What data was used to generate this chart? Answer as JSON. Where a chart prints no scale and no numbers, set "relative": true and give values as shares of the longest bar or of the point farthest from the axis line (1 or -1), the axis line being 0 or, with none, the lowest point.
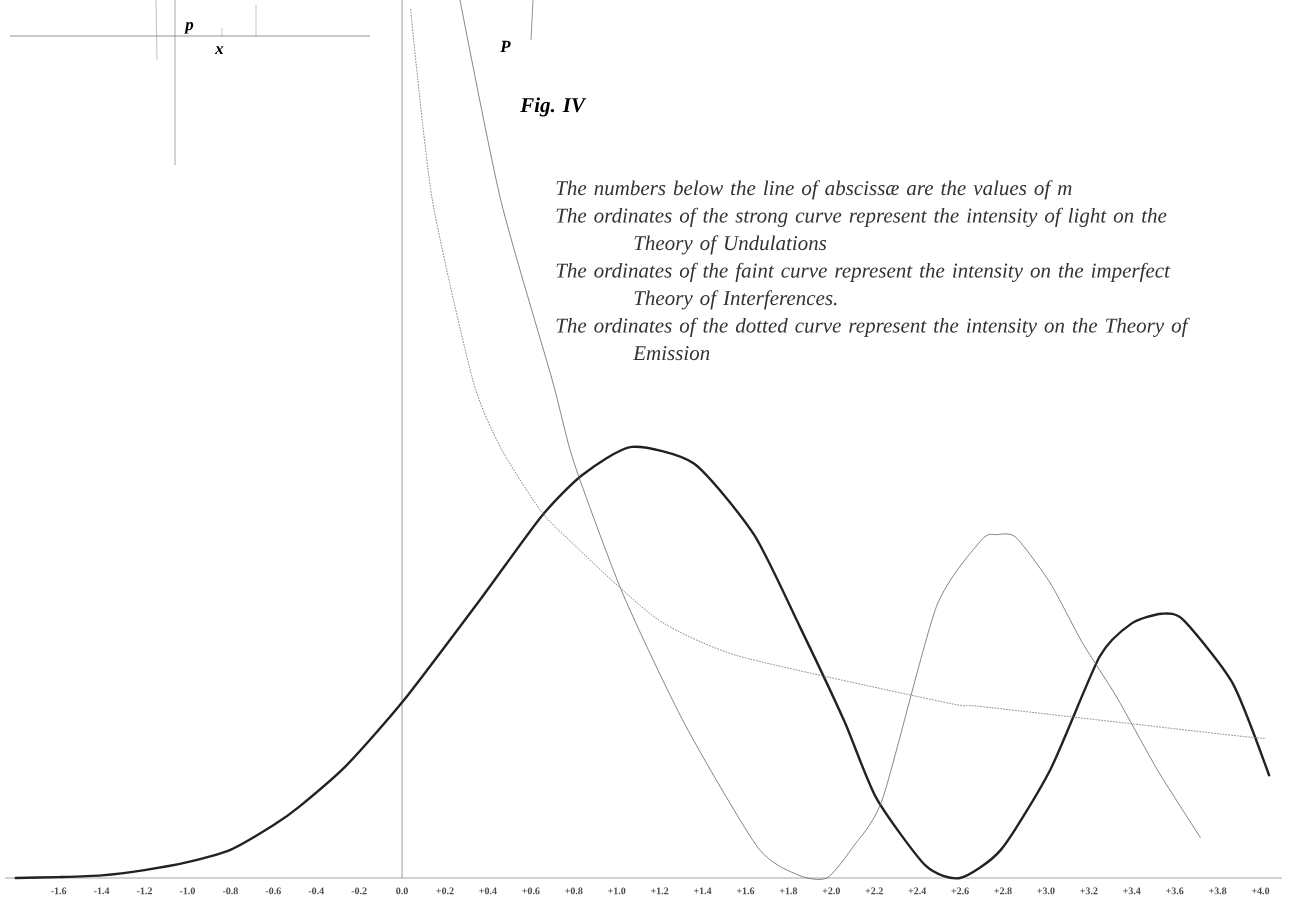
{
  "chart_data": {
    "type": "line",
    "title": "Fig. IV",
    "annotations": [
      "The numbers below the line of abscissæ are the values of m",
      "The ordinates of the strong curve represent the intensity of light on the Theory of Undulations",
      "The ordinates of the faint curve represent the intensity on the imperfect Theory of Interferences.",
      "The ordinates of the dotted curve represent the intensity on the Theory of Emission",
      "p",
      "x",
      "P"
    ],
    "relative": true,
    "xlim": [
      -1.85,
      4.1
    ],
    "xticks": [
      {
        "value": -1.6,
        "label": "-1.6"
      },
      {
        "value": -1.4,
        "label": "-1.4"
      },
      {
        "value": -1.2,
        "label": "-1.2"
      },
      {
        "value": -1.0,
        "label": "-1.0"
      },
      {
        "value": -0.8,
        "label": "-0.8"
      },
      {
        "value": -0.6,
        "label": "-0.6"
      },
      {
        "value": -0.4,
        "label": "-0.4"
      },
      {
        "value": -0.2,
        "label": "-0.2"
      },
      {
        "value": 0,
        "label": "0.0"
      },
      {
        "value": 0.2,
        "label": "+0.2"
      },
      {
        "value": 0.4,
        "label": "+0.4"
      },
      {
        "value": 0.6,
        "label": "+0.6"
      },
      {
        "value": 0.8,
        "label": "+0.8"
      },
      {
        "value": 1.0,
        "label": "+1.0"
      },
      {
        "value": 1.2,
        "label": "+1.2"
      },
      {
        "value": 1.4,
        "label": "+1.4"
      },
      {
        "value": 1.6,
        "label": "+1.6"
      },
      {
        "value": 1.8,
        "label": "+1.8"
      },
      {
        "value": 2.0,
        "label": "+2.0"
      },
      {
        "value": 2.2,
        "label": "+2.2"
      },
      {
        "value": 2.4,
        "label": "+2.4"
      },
      {
        "value": 2.6,
        "label": "+2.6"
      },
      {
        "value": 2.8,
        "label": "+2.8"
      },
      {
        "value": 3.0,
        "label": "+3.0"
      },
      {
        "value": 3.2,
        "label": "+3.2"
      },
      {
        "value": 3.4,
        "label": "+3.4"
      },
      {
        "value": 3.6,
        "label": "+3.6"
      },
      {
        "value": 3.8,
        "label": "+3.8"
      },
      {
        "value": 4.0,
        "label": "+4.0"
      }
    ],
    "tick_labels": "x",
    "ref_lines": [
      {
        "axis": "x",
        "value": 0,
        "color": "#555555"
      }
    ],
    "series": [
      {
        "color": "#222222",
        "line_style": "solid",
        "x": [
          -1.8,
          -1.6,
          -1.4,
          -1.2,
          -1.0,
          -0.8,
          -0.6,
          -0.48,
          -0.26,
          0.01,
          0.37,
          0.65,
          0.84,
          1.07,
          1.36,
          1.64,
          1.85,
          2.06,
          2.21,
          2.44,
          2.6,
          2.79,
          3.02,
          3.25,
          3.4,
          3.54,
          3.64,
          3.87,
          4.04
        ],
        "values": [
          0.0,
          0.001,
          0.003,
          0.009,
          0.018,
          0.032,
          0.06,
          0.081,
          0.128,
          0.203,
          0.319,
          0.412,
          0.459,
          0.491,
          0.472,
          0.391,
          0.288,
          0.179,
          0.091,
          0.014,
          0.0,
          0.032,
          0.123,
          0.252,
          0.29,
          0.301,
          0.294,
          0.222,
          0.117
        ]
      },
      {
        "color": "#666666",
        "line_style": "solid",
        "x": [
          0.27,
          0.46,
          0.7,
          0.8,
          1.03,
          1.32,
          1.66,
          1.85,
          1.98,
          2.1,
          2.24,
          2.49,
          2.7,
          2.77,
          2.86,
          3.02,
          3.17,
          3.33,
          3.52,
          3.72
        ],
        "values": [
          1.0,
          0.772,
          0.567,
          0.474,
          0.323,
          0.174,
          0.034,
          0.003,
          0.0,
          0.035,
          0.091,
          0.309,
          0.385,
          0.391,
          0.388,
          0.336,
          0.268,
          0.206,
          0.123,
          0.046
        ]
      },
      {
        "color": "#777777",
        "line_style": "dotted",
        "x": [
          0.04,
          0.14,
          0.33,
          0.46,
          0.65,
          0.8,
          1.0,
          1.22,
          1.58,
          2.55,
          2.71,
          3.85,
          4.02
        ],
        "values": [
          0.989,
          0.774,
          0.567,
          0.49,
          0.417,
          0.38,
          0.334,
          0.29,
          0.252,
          0.199,
          0.195,
          0.163,
          0.159
        ]
      }
    ]
  }
}
